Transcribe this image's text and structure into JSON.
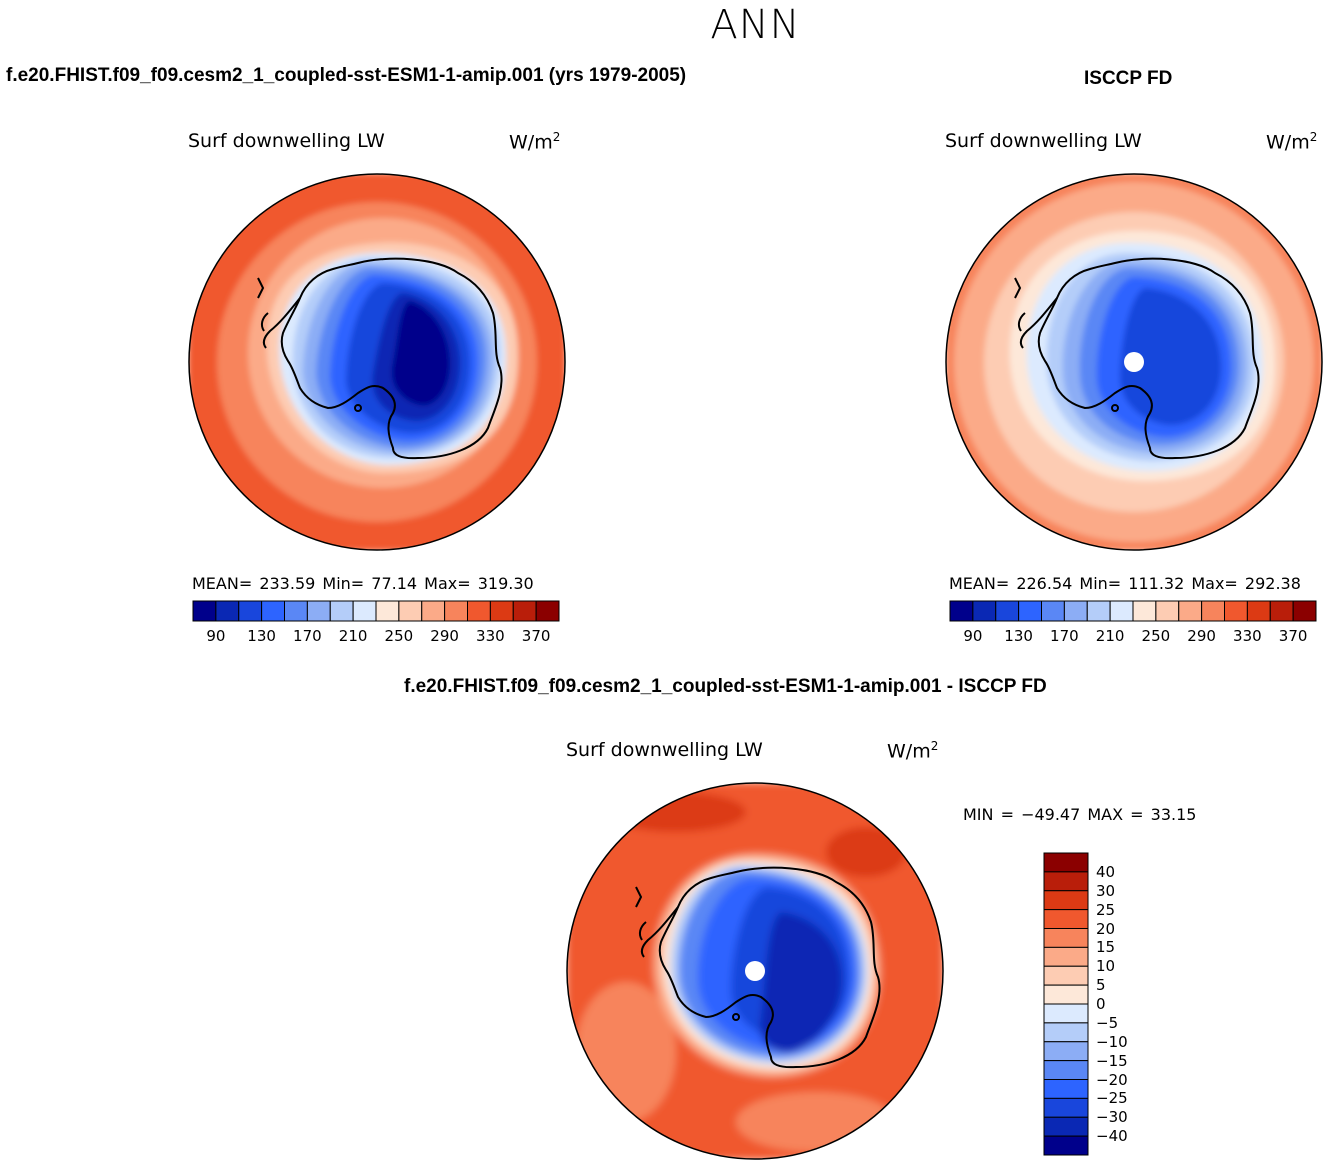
{
  "page": {
    "title": "ANN",
    "case_title": "f.e20.FHIST.f09_f09.cesm2_1_coupled-sst-ESM1-1-amip.001 (yrs 1979-2005)",
    "obs_title": "ISCCP FD",
    "diff_title": "f.e20.FHIST.f09_f09.cesm2_1_coupled-sst-ESM1-1-amip.001 - ISCCP FD"
  },
  "chart_data": [
    {
      "type": "heatmap",
      "projection": "south-polar-stereographic",
      "variable": "Surf downwelling LW",
      "units_base": "W/m",
      "units_exp": "2",
      "stats": {
        "mean": "233.59",
        "min": "77.14",
        "max": "319.30"
      },
      "stats_text": "MEAN= 233.59   Min=  77.14   Max= 319.30",
      "levels": [
        90,
        110,
        130,
        150,
        170,
        190,
        210,
        230,
        250,
        270,
        290,
        310,
        330,
        350,
        370
      ],
      "tick_labels": [
        "90",
        "130",
        "170",
        "210",
        "250",
        "290",
        "330",
        "370"
      ],
      "colors": [
        "#00008b",
        "#0a28b4",
        "#1946dc",
        "#2d64ff",
        "#5a87f5",
        "#8cadf5",
        "#b4cdf9",
        "#dceafe",
        "#fde8d9",
        "#fdccb3",
        "#fbaa88",
        "#f7845c",
        "#f0582e",
        "#dc3a14",
        "#b91e0a",
        "#8b0000"
      ]
    },
    {
      "type": "heatmap",
      "projection": "south-polar-stereographic",
      "variable": "Surf downwelling LW",
      "units_base": "W/m",
      "units_exp": "2",
      "stats": {
        "mean": "226.54",
        "min": "111.32",
        "max": "292.38"
      },
      "stats_text": "MEAN= 226.54   Min= 111.32   Max= 292.38",
      "levels": [
        90,
        110,
        130,
        150,
        170,
        190,
        210,
        230,
        250,
        270,
        290,
        310,
        330,
        350,
        370
      ],
      "tick_labels": [
        "90",
        "130",
        "170",
        "210",
        "250",
        "290",
        "330",
        "370"
      ],
      "colors": [
        "#00008b",
        "#0a28b4",
        "#1946dc",
        "#2d64ff",
        "#5a87f5",
        "#8cadf5",
        "#b4cdf9",
        "#dceafe",
        "#fde8d9",
        "#fdccb3",
        "#fbaa88",
        "#f7845c",
        "#f0582e",
        "#dc3a14",
        "#b91e0a",
        "#8b0000"
      ]
    },
    {
      "type": "heatmap",
      "projection": "south-polar-stereographic",
      "variable": "Surf downwelling LW",
      "units_base": "W/m",
      "units_exp": "2",
      "stats": {
        "min": "-49.47",
        "max": "33.15"
      },
      "stats_text": "MIN = −49.47 MAX =  33.15",
      "levels": [
        -40,
        -30,
        -25,
        -20,
        -15,
        -10,
        -5,
        0,
        5,
        10,
        15,
        20,
        25,
        30,
        40
      ],
      "tick_labels": [
        "40",
        "30",
        "25",
        "20",
        "15",
        "10",
        "5",
        "0",
        "−5",
        "−10",
        "−15",
        "−20",
        "−25",
        "−30",
        "−40"
      ],
      "colors": [
        "#8b0000",
        "#b91e0a",
        "#dc3a14",
        "#f0582e",
        "#f7845c",
        "#fbaa88",
        "#fdccb3",
        "#fde8d9",
        "#dceafe",
        "#b4cdf9",
        "#8cadf5",
        "#5a87f5",
        "#2d64ff",
        "#1946dc",
        "#0a28b4",
        "#00008b"
      ]
    }
  ]
}
